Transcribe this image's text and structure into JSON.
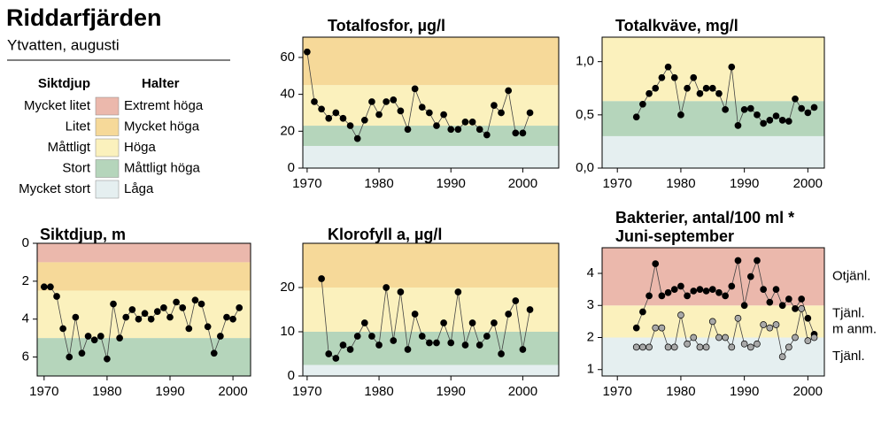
{
  "header": {
    "title": "Riddarfjärden",
    "subtitle": "Ytvatten, augusti"
  },
  "legend": {
    "headers": [
      "Siktdjup",
      "Halter"
    ],
    "rows": [
      {
        "siktdjup": "Mycket litet",
        "halter": "Extremt höga",
        "color": "#ebb8ac"
      },
      {
        "siktdjup": "Litet",
        "halter": "Mycket höga",
        "color": "#f6d999"
      },
      {
        "siktdjup": "Måttligt",
        "halter": "Höga",
        "color": "#fbf1bd"
      },
      {
        "siktdjup": "Stort",
        "halter": "Måttligt höga",
        "color": "#b5d5bb"
      },
      {
        "siktdjup": "Mycket stort",
        "halter": "Låga",
        "color": "#e5eff0"
      }
    ]
  },
  "chart_data": [
    {
      "type": "line",
      "title": "Totalfosfor, µg/l",
      "x": [
        1970,
        1971,
        1972,
        1973,
        1974,
        1975,
        1976,
        1977,
        1978,
        1979,
        1980,
        1981,
        1982,
        1983,
        1984,
        1985,
        1986,
        1987,
        1988,
        1989,
        1990,
        1991,
        1992,
        1993,
        1994,
        1995,
        1996,
        1997,
        1998,
        1999,
        2000,
        2001
      ],
      "series": [
        {
          "color": "#000000",
          "values": [
            63,
            36,
            32,
            27,
            30,
            27,
            23,
            16,
            26,
            36,
            29,
            36,
            37,
            31,
            21,
            43,
            33,
            30,
            23,
            29,
            21,
            21,
            25,
            25,
            21,
            18,
            34,
            30,
            42,
            19,
            19,
            30
          ]
        }
      ],
      "xlim": [
        1969.4,
        2005
      ],
      "ylim": [
        0,
        71
      ],
      "xticks": [
        1970,
        1980,
        1990,
        2000
      ],
      "yticks": [
        0,
        20,
        40,
        60
      ],
      "bands": [
        {
          "from": 0,
          "to": 12,
          "color": "#e5eff0"
        },
        {
          "from": 12,
          "to": 23,
          "color": "#b5d5bb"
        },
        {
          "from": 23,
          "to": 45,
          "color": "#fbf1bd"
        },
        {
          "from": 45,
          "to": 71,
          "color": "#f6d999"
        }
      ]
    },
    {
      "type": "line",
      "title": "Totalkväve, mg/l",
      "x": [
        1973,
        1974,
        1975,
        1976,
        1977,
        1978,
        1979,
        1980,
        1981,
        1982,
        1983,
        1984,
        1985,
        1986,
        1987,
        1988,
        1989,
        1990,
        1991,
        1992,
        1993,
        1994,
        1995,
        1996,
        1997,
        1998,
        1999,
        2000,
        2001
      ],
      "series": [
        {
          "color": "#000000",
          "values": [
            0.48,
            0.6,
            0.7,
            0.75,
            0.85,
            0.95,
            0.85,
            0.5,
            0.75,
            0.85,
            0.7,
            0.75,
            0.75,
            0.7,
            0.55,
            0.95,
            0.4,
            0.55,
            0.56,
            0.5,
            0.42,
            0.45,
            0.49,
            0.45,
            0.44,
            0.65,
            0.56,
            0.52,
            0.57
          ]
        }
      ],
      "xlim": [
        1967.6,
        2002.6
      ],
      "ylim": [
        0,
        1.23
      ],
      "xticks": [
        1970,
        1980,
        1990,
        2000
      ],
      "yticks": [
        {
          "value": 0,
          "label": "0,0"
        },
        {
          "value": 0.5,
          "label": "0,5"
        },
        {
          "value": 1,
          "label": "1,0"
        }
      ],
      "bands": [
        {
          "from": 0,
          "to": 0.3,
          "color": "#e5eff0"
        },
        {
          "from": 0.3,
          "to": 0.63,
          "color": "#b5d5bb"
        },
        {
          "from": 0.63,
          "to": 1.23,
          "color": "#fbf1bd"
        }
      ]
    },
    {
      "type": "line",
      "title": "Siktdjup, m",
      "y_inverted": true,
      "x": [
        1970,
        1971,
        1972,
        1973,
        1974,
        1975,
        1976,
        1977,
        1978,
        1979,
        1980,
        1981,
        1982,
        1983,
        1984,
        1985,
        1986,
        1987,
        1988,
        1989,
        1990,
        1991,
        1992,
        1993,
        1994,
        1995,
        1996,
        1997,
        1998,
        1999,
        2000,
        2001
      ],
      "series": [
        {
          "color": "#000000",
          "values": [
            2.3,
            2.3,
            2.8,
            4.5,
            6.0,
            3.9,
            5.8,
            4.9,
            5.1,
            4.9,
            6.1,
            3.2,
            5.0,
            3.9,
            3.5,
            4.0,
            3.7,
            4.0,
            3.6,
            3.4,
            3.9,
            3.1,
            3.4,
            4.5,
            3.0,
            3.2,
            4.4,
            5.8,
            4.9,
            3.9,
            4.0,
            3.4
          ]
        }
      ],
      "xlim": [
        1968.9,
        2002.8
      ],
      "ylim": [
        0,
        7
      ],
      "xticks": [
        1970,
        1980,
        1990,
        2000
      ],
      "yticks": [
        0,
        2,
        4,
        6
      ],
      "bands": [
        {
          "from": 0,
          "to": 1,
          "color": "#ebb8ac"
        },
        {
          "from": 1,
          "to": 2.5,
          "color": "#f6d999"
        },
        {
          "from": 2.5,
          "to": 5,
          "color": "#fbf1bd"
        },
        {
          "from": 5,
          "to": 7,
          "color": "#b5d5bb"
        }
      ]
    },
    {
      "type": "line",
      "title": "Klorofyll a, µg/l",
      "x": [
        1972,
        1973,
        1974,
        1975,
        1976,
        1977,
        1978,
        1979,
        1980,
        1981,
        1982,
        1983,
        1984,
        1985,
        1986,
        1987,
        1988,
        1989,
        1990,
        1991,
        1992,
        1993,
        1994,
        1995,
        1996,
        1997,
        1998,
        1999,
        2000,
        2001
      ],
      "series": [
        {
          "color": "#000000",
          "values": [
            22,
            5,
            4,
            7,
            6,
            9,
            12,
            9,
            7,
            20,
            8,
            19,
            6,
            14,
            9,
            7.5,
            7.5,
            12,
            7.5,
            19,
            7,
            12,
            7,
            9,
            12,
            5,
            14,
            17,
            6,
            15
          ]
        }
      ],
      "xlim": [
        1969.4,
        2005
      ],
      "ylim": [
        0,
        30
      ],
      "xticks": [
        1970,
        1980,
        1990,
        2000
      ],
      "yticks": [
        0,
        10,
        20
      ],
      "bands": [
        {
          "from": 0,
          "to": 2.5,
          "color": "#e5eff0"
        },
        {
          "from": 2.5,
          "to": 10,
          "color": "#b5d5bb"
        },
        {
          "from": 10,
          "to": 20,
          "color": "#fbf1bd"
        },
        {
          "from": 20,
          "to": 30,
          "color": "#f6d999"
        }
      ]
    },
    {
      "type": "line",
      "title": "Bakterier, antal/100 ml *",
      "subtitle": "Juni-september",
      "x": [
        1973,
        1974,
        1975,
        1976,
        1977,
        1978,
        1979,
        1980,
        1981,
        1982,
        1983,
        1984,
        1985,
        1986,
        1987,
        1988,
        1989,
        1990,
        1991,
        1992,
        1993,
        1994,
        1995,
        1996,
        1997,
        1998,
        1999,
        2000,
        2001
      ],
      "series": [
        {
          "color": "#000000",
          "values": [
            2.3,
            2.8,
            3.3,
            4.3,
            3.3,
            3.4,
            3.5,
            3.6,
            3.3,
            3.45,
            3.5,
            3.45,
            3.5,
            3.4,
            3.3,
            3.6,
            4.4,
            3.0,
            3.9,
            4.4,
            3.5,
            3.1,
            3.5,
            3.0,
            3.2,
            2.9,
            3.2,
            2.6,
            2.1
          ]
        },
        {
          "color": "#a8a8a8",
          "values": [
            1.7,
            1.7,
            1.7,
            2.3,
            2.3,
            1.7,
            1.7,
            2.7,
            1.8,
            2.0,
            1.7,
            1.7,
            2.5,
            2.0,
            2.0,
            1.7,
            2.6,
            1.8,
            1.7,
            1.8,
            2.4,
            2.3,
            2.4,
            1.4,
            1.7,
            2.0,
            2.9,
            1.9,
            2.0
          ]
        }
      ],
      "xlim": [
        1967.6,
        2002.6
      ],
      "ylim": [
        0.8,
        4.8
      ],
      "xticks": [
        1970,
        1980,
        1990,
        2000
      ],
      "yticks": [
        1,
        2,
        3,
        4
      ],
      "bands": [
        {
          "from": 0.8,
          "to": 2,
          "color": "#e5eff0",
          "labels": [
            "Tjänl."
          ]
        },
        {
          "from": 2,
          "to": 3,
          "color": "#fbf1bd",
          "labels": [
            "Tjänl.",
            "m anm."
          ]
        },
        {
          "from": 3,
          "to": 4.8,
          "color": "#ebb8ac",
          "labels": [
            "Otjänl."
          ]
        }
      ]
    }
  ]
}
